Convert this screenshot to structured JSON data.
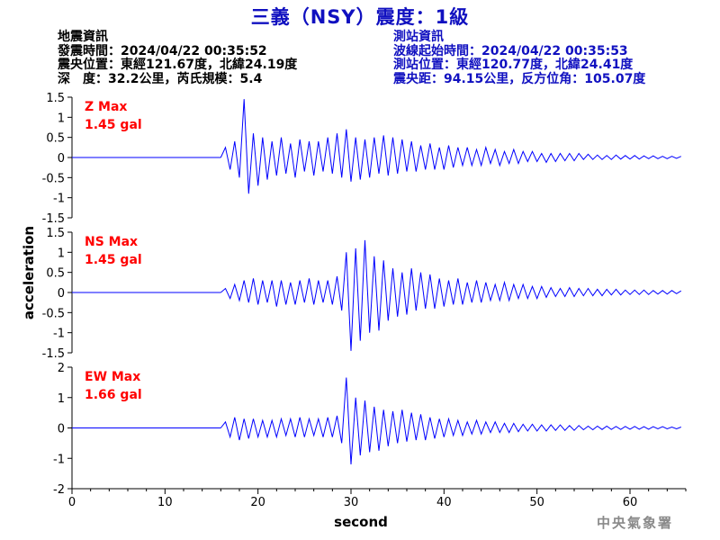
{
  "header": {
    "title": "三義（NSY）震度：1級"
  },
  "event_info": {
    "heading": "地震資訊",
    "origin_time": "發震時間：2024/04/22 00:35:52",
    "epicenter": "震央位置：東經121.67度，北緯24.19度",
    "depth_magnitude": "深　度：32.2公里，芮氏規模：5.4"
  },
  "station_info": {
    "heading": "測站資訊",
    "wave_onset": "波線起始時間：2024/04/22 00:35:53",
    "location": "測站位置：東經120.77度，北緯24.41度",
    "distance_azimuth": "震央距：94.15公里，反方位角：105.07度"
  },
  "watermark": "中央氣象署",
  "colors": {
    "title": "#1010c0",
    "station_info": "#1010c0",
    "trace": "#0000ff",
    "max_label": "#ff0000",
    "watermark": "#8a8a8a",
    "axis": "#000000"
  },
  "chart_data": {
    "type": "line",
    "xlabel": "second",
    "ylabel": "acceleration",
    "xlim": [
      0,
      66
    ],
    "x_ticks": [
      0,
      10,
      20,
      30,
      40,
      50,
      60
    ],
    "grid": false,
    "legend": "none",
    "series": [
      {
        "name": "Z",
        "max_label": "Z Max",
        "max_value": "1.45 gal",
        "ylim": [
          -1.5,
          1.5
        ],
        "y_ticks": [
          1.5,
          1,
          0.5,
          0,
          -0.5,
          -1,
          -1.5
        ],
        "y_tick_labels": [
          "1.5",
          "1",
          "0.5",
          "0",
          "-0.5",
          "-1",
          "-1.5"
        ],
        "sample_interval_s": 0.5,
        "trace_start_s": 16,
        "trace_end_s": 66,
        "values": [
          0.0,
          0.25,
          -0.3,
          0.4,
          -0.5,
          1.45,
          -0.9,
          0.6,
          -0.7,
          0.5,
          -0.55,
          0.4,
          -0.45,
          0.5,
          -0.4,
          0.35,
          -0.5,
          0.45,
          -0.35,
          0.4,
          -0.45,
          0.4,
          -0.35,
          0.5,
          -0.4,
          0.6,
          -0.5,
          0.7,
          -0.6,
          0.5,
          -0.55,
          0.45,
          -0.5,
          0.5,
          -0.4,
          0.55,
          -0.45,
          0.5,
          -0.4,
          0.45,
          -0.35,
          0.4,
          -0.35,
          0.3,
          -0.3,
          0.35,
          -0.3,
          0.25,
          -0.3,
          0.3,
          -0.25,
          0.25,
          -0.2,
          0.25,
          -0.2,
          0.2,
          -0.2,
          0.25,
          -0.15,
          0.2,
          -0.2,
          0.15,
          -0.15,
          0.2,
          -0.15,
          0.15,
          -0.1,
          0.15,
          -0.1,
          0.1,
          -0.12,
          0.1,
          -0.1,
          0.1,
          -0.08,
          0.1,
          -0.08,
          0.1,
          -0.05,
          0.08,
          -0.05,
          0.06,
          -0.05,
          0.05,
          -0.05,
          0.06,
          -0.04,
          0.05,
          -0.04,
          0.05,
          -0.04,
          0.04,
          -0.03,
          0.04,
          -0.03,
          0.03,
          -0.03,
          0.03,
          -0.02,
          0.03
        ]
      },
      {
        "name": "NS",
        "max_label": "NS Max",
        "max_value": "1.45 gal",
        "ylim": [
          -1.5,
          1.5
        ],
        "y_ticks": [
          1.5,
          1,
          0.5,
          0,
          -0.5,
          -1,
          -1.5
        ],
        "y_tick_labels": [
          "1.5",
          "1",
          "0.5",
          "0",
          "-0.5",
          "-1",
          "-1.5"
        ],
        "sample_interval_s": 0.5,
        "trace_start_s": 16,
        "trace_end_s": 66,
        "values": [
          0.0,
          0.1,
          -0.15,
          0.2,
          -0.2,
          0.3,
          -0.25,
          0.35,
          -0.3,
          0.3,
          -0.25,
          0.3,
          -0.35,
          0.3,
          -0.3,
          0.25,
          -0.3,
          0.3,
          -0.25,
          0.35,
          -0.3,
          0.3,
          -0.25,
          0.3,
          -0.3,
          0.4,
          -0.45,
          1.0,
          -1.45,
          1.1,
          -1.2,
          1.3,
          -1.0,
          0.9,
          -0.95,
          0.8,
          -0.7,
          0.6,
          -0.6,
          0.5,
          -0.55,
          0.6,
          -0.45,
          0.5,
          -0.4,
          0.45,
          -0.4,
          0.35,
          -0.35,
          0.3,
          -0.3,
          0.35,
          -0.3,
          0.25,
          -0.25,
          0.3,
          -0.25,
          0.25,
          -0.2,
          0.2,
          -0.2,
          0.25,
          -0.2,
          0.2,
          -0.15,
          0.2,
          -0.15,
          0.15,
          -0.15,
          0.15,
          -0.12,
          0.12,
          -0.1,
          0.1,
          -0.1,
          0.12,
          -0.1,
          0.1,
          -0.08,
          0.1,
          -0.08,
          0.08,
          -0.08,
          0.08,
          -0.06,
          0.08,
          -0.06,
          0.06,
          -0.05,
          0.06,
          -0.05,
          0.06,
          -0.05,
          0.05,
          -0.04,
          0.05,
          -0.04,
          0.05,
          -0.03,
          0.04
        ]
      },
      {
        "name": "EW",
        "max_label": "EW Max",
        "max_value": "1.66 gal",
        "ylim": [
          -2,
          2
        ],
        "y_ticks": [
          2,
          1,
          0,
          -1,
          -2
        ],
        "y_tick_labels": [
          "2",
          "1",
          "0",
          "-1",
          "-2"
        ],
        "sample_interval_s": 0.5,
        "trace_start_s": 16,
        "trace_end_s": 66,
        "values": [
          0.0,
          0.2,
          -0.3,
          0.35,
          -0.4,
          0.3,
          -0.35,
          0.3,
          -0.3,
          0.25,
          -0.3,
          0.25,
          -0.3,
          0.3,
          -0.25,
          0.3,
          -0.3,
          0.35,
          -0.3,
          0.3,
          -0.25,
          0.3,
          -0.3,
          0.35,
          -0.3,
          0.4,
          -0.5,
          1.66,
          -1.2,
          1.0,
          -0.9,
          0.9,
          -0.8,
          0.7,
          -0.75,
          0.6,
          -0.6,
          0.55,
          -0.5,
          0.6,
          -0.45,
          0.5,
          -0.4,
          0.45,
          -0.4,
          0.35,
          -0.35,
          0.3,
          -0.3,
          0.3,
          -0.25,
          0.25,
          -0.25,
          0.2,
          -0.2,
          0.25,
          -0.2,
          0.2,
          -0.15,
          0.2,
          -0.15,
          0.15,
          -0.15,
          0.15,
          -0.12,
          0.12,
          -0.1,
          0.12,
          -0.1,
          0.1,
          -0.1,
          0.1,
          -0.08,
          0.1,
          -0.08,
          0.08,
          -0.08,
          0.08,
          -0.06,
          0.06,
          -0.06,
          0.06,
          -0.05,
          0.06,
          -0.05,
          0.05,
          -0.05,
          0.05,
          -0.04,
          0.05,
          -0.04,
          0.04,
          -0.04,
          0.04,
          -0.03,
          0.04,
          -0.03,
          0.03,
          -0.03,
          0.03
        ]
      }
    ]
  }
}
